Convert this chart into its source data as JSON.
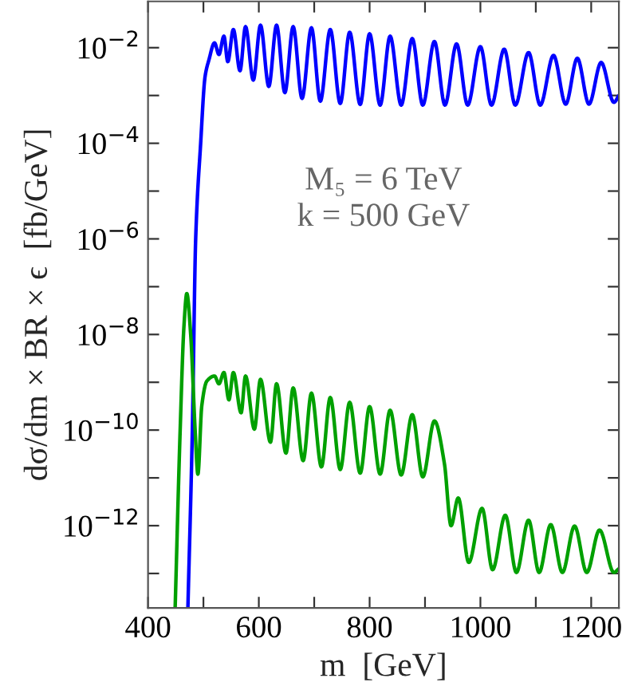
{
  "chart_data": {
    "type": "line",
    "xlabel": "m  [GeV]",
    "ylabel": "dσ/dm × BR × ϵ  [fb/GeV]",
    "annotations": [
      "M₅ = 6 TeV",
      "k = 500 GeV"
    ],
    "log": "y",
    "grid": false,
    "legend": false,
    "marker": "none",
    "line_style": "solid",
    "xlim": [
      400,
      1250
    ],
    "xticks": [
      400,
      {
        "value": 500,
        "label": null
      },
      600,
      {
        "value": 700,
        "label": null
      },
      800,
      {
        "value": 900,
        "label": null
      },
      1000,
      {
        "value": 1100,
        "label": null
      },
      1200
    ],
    "ylim": [
      1.9e-14,
      0.093
    ],
    "yticks": [
      {
        "value": 1e-13,
        "label": null
      },
      {
        "value": 1e-12,
        "label": "10$^{−12}$"
      },
      {
        "value": 1e-11,
        "label": null
      },
      {
        "value": 1e-10,
        "label": "10$^{−10}$"
      },
      {
        "value": 1e-09,
        "label": null
      },
      {
        "value": 1e-08,
        "label": "10$^{−8}$"
      },
      {
        "value": 1e-07,
        "label": null
      },
      {
        "value": 1e-06,
        "label": "10$^{−6}$"
      },
      {
        "value": 1e-05,
        "label": null
      },
      {
        "value": 0.0001,
        "label": "10$^{−4}$"
      },
      {
        "value": 0.001,
        "label": null
      },
      {
        "value": 0.01,
        "label": "10$^{−2}$"
      }
    ],
    "series": [
      {
        "color": "#0000ff",
        "x": [
          472,
          480,
          486,
          495,
          503,
          510,
          520,
          528,
          537,
          544,
          554,
          566,
          576,
          590,
          603,
          618,
          632,
          647,
          662,
          678,
          695,
          711,
          729,
          747,
          764,
          783,
          800,
          819,
          837,
          857,
          877,
          896,
          917,
          936,
          957,
          977,
          1000,
          1020,
          1043,
          1063,
          1087,
          1108,
          1132,
          1154,
          1175,
          1196,
          1218,
          1241,
          1250
        ],
        "values": [
          2e-14,
          1e-10,
          1e-06,
          0.0001,
          0.0025,
          0.0056,
          0.0126,
          0.0072,
          0.0174,
          0.0051,
          0.024,
          0.0033,
          0.0275,
          0.0021,
          0.0295,
          0.00155,
          0.0295,
          0.00115,
          0.0275,
          0.00087,
          0.026,
          0.00076,
          0.024,
          0.00068,
          0.021,
          0.00065,
          0.0195,
          0.00063,
          0.0174,
          0.00063,
          0.0155,
          0.00063,
          0.0135,
          0.00063,
          0.012,
          0.00063,
          0.0105,
          0.00063,
          0.0093,
          0.00063,
          0.0079,
          0.00063,
          0.0069,
          0.00066,
          0.006,
          0.00066,
          0.0049,
          0.00072,
          0.001
        ]
      },
      {
        "color": "#00a000",
        "x": [
          449,
          458,
          465,
          470,
          477,
          485,
          490,
          497,
          506,
          520,
          528,
          537,
          546,
          554,
          568,
          576,
          592,
          603,
          621,
          632,
          649,
          662,
          680,
          695,
          713,
          729,
          747,
          764,
          783,
          800,
          819,
          837,
          857,
          877,
          896,
          917,
          935,
          947,
          960,
          979,
          1003,
          1022,
          1045,
          1065,
          1087,
          1106,
          1127,
          1148,
          1170,
          1192,
          1215,
          1241,
          1250
        ],
        "values": [
          2e-14,
          1e-10,
          1.6e-08,
          7.2e-08,
          1e-08,
          1e-10,
          1.2e-11,
          3.2e-10,
          1.05e-09,
          1.35e-09,
          9.3e-10,
          1.6e-09,
          4.3e-10,
          1.6e-09,
          2.3e-10,
          1.35e-09,
          1.05e-10,
          1.15e-09,
          5.6e-11,
          9.3e-10,
          3.3e-11,
          7.6e-10,
          2.3e-11,
          5.9e-10,
          1.7e-11,
          4.8e-10,
          1.5e-11,
          3.8e-10,
          1.26e-11,
          3.1e-10,
          1.2e-11,
          2.6e-10,
          1.15e-11,
          2.1e-10,
          1.05e-11,
          1.55e-10,
          2e-11,
          1e-12,
          3.8e-12,
          1.7e-13,
          2.3e-12,
          1.2e-13,
          1.65e-12,
          1.05e-13,
          1.3e-12,
          1.05e-13,
          1.05e-12,
          1.05e-13,
          9.8e-13,
          1.05e-13,
          8.1e-13,
          1.05e-13,
          1.26e-13
        ]
      }
    ]
  }
}
